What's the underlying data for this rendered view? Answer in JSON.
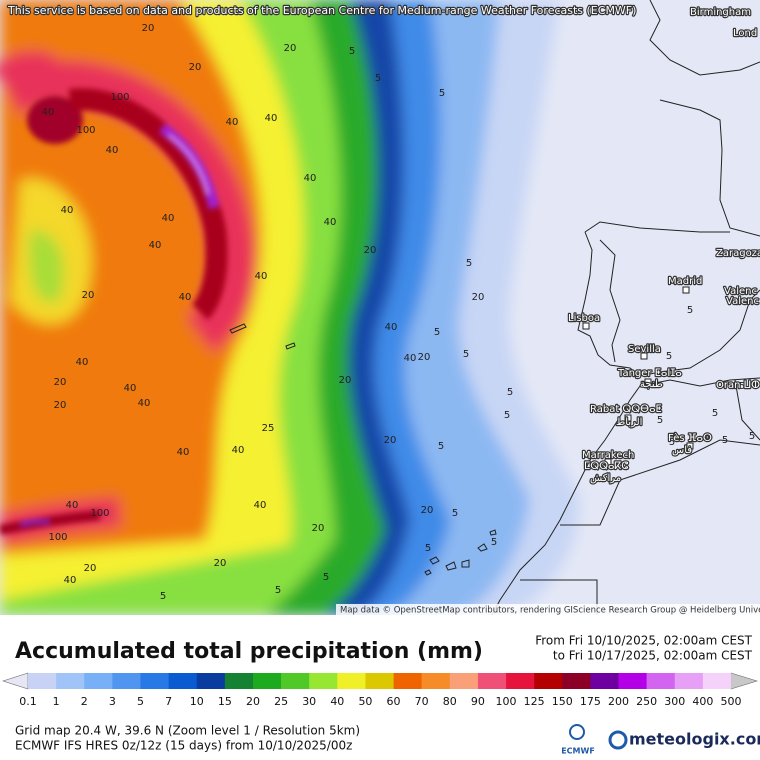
{
  "header": {
    "notice": "This service is based on data and products of the European Centre for Medium-range Weather Forecasts (ECMWF)"
  },
  "map": {
    "cities": [
      "Birmingham",
      "Lond",
      "Zaragoza",
      "Madrid",
      "Valenc",
      "Valenc",
      "Lisboa",
      "Sevilla",
      "Tanger ⵟⴰⵏⵊⴰ",
      "طنجة",
      "Rabat ⵕⵕⴱⴰⵟ",
      "الرباط",
      "Fès ⴼⴰⵙ",
      "فاس",
      "Marrakech",
      "ⵎⵕⵕⴰⴽⵛ",
      "مراكش",
      "Oran ⵡⵀⵔⴰⵏ"
    ],
    "contour_labels": [
      100,
      100,
      40,
      40,
      40,
      40,
      20,
      20,
      20,
      5,
      5,
      5,
      40,
      40,
      40,
      40,
      40,
      40,
      20,
      20,
      40,
      40,
      20,
      40,
      40,
      20,
      20,
      40,
      40,
      20,
      20,
      5,
      5,
      5,
      5,
      5,
      20,
      25,
      40,
      40,
      40,
      100,
      100,
      40,
      20,
      20,
      40,
      20,
      5,
      5,
      5,
      5,
      5,
      20,
      5,
      5,
      5,
      5,
      5,
      5,
      5,
      5,
      5,
      5,
      5
    ],
    "attribution": "Map data © OpenStreetMap contributors, rendering GIScience Research Group @ Heidelberg University"
  },
  "title": "Accumulated total precipitation (mm)",
  "period": {
    "from": "From Fri 10/10/2025, 02:00am CEST",
    "to": "to Fri 10/17/2025, 02:00am CEST"
  },
  "legend": {
    "ticks": [
      0.1,
      1,
      2,
      3,
      5,
      7,
      10,
      15,
      20,
      25,
      30,
      40,
      50,
      60,
      70,
      80,
      90,
      100,
      125,
      150,
      175,
      200,
      250,
      300,
      400,
      500
    ],
    "under_color": "#e6e6f5",
    "colors": [
      "#c8d2f5",
      "#a0c4f8",
      "#78b0f8",
      "#5096f0",
      "#2878e6",
      "#0a5ad2",
      "#0a3ca0",
      "#148232",
      "#1eaa1e",
      "#50c828",
      "#96e632",
      "#f0f028",
      "#dcc800",
      "#f06400",
      "#f58c28",
      "#faa078",
      "#f05078",
      "#e6143c",
      "#b40000",
      "#8c0028",
      "#6e00a0",
      "#b400e6",
      "#d264f0",
      "#e6a0f5",
      "#f5d2fa"
    ],
    "over_color": "#c8c8c8"
  },
  "footer": {
    "grid": "Grid map 20.4 W, 39.6 N (Zoom level 1 / Resolution 5km)",
    "model": "ECMWF IFS HRES 0z/12z (15 days)  from  10/10/2025/00z"
  },
  "logos": {
    "ecmwf": "ECMWF",
    "meteologix": "meteologix.com"
  }
}
